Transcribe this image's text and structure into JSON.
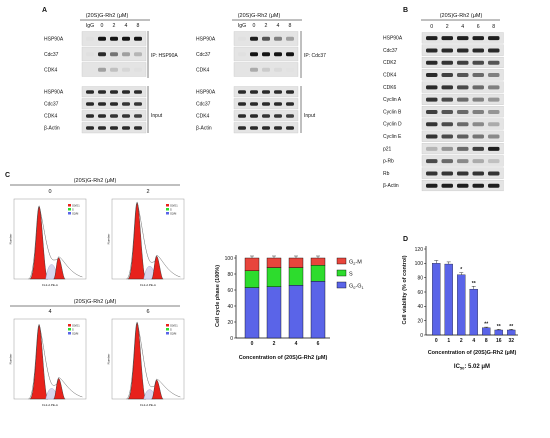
{
  "compound": "(20S)G-Rh2 (μM)",
  "panel_a": {
    "letter": "A",
    "lanes": [
      "IgG",
      "0",
      "2",
      "4",
      "8"
    ],
    "ip_hsp90a": {
      "ip_label": "IP: HSP90A",
      "input_label": "Input",
      "ip_rows": [
        "HSP90A",
        "Cdc37",
        "CDK4"
      ],
      "input_rows": [
        "HSP90A",
        "Cdc37",
        "CDK4",
        "β-Actin"
      ],
      "ip_intensity": [
        [
          0.05,
          1,
          1,
          1,
          1
        ],
        [
          0.05,
          0.9,
          0.55,
          0.35,
          0.25
        ],
        [
          0,
          0.35,
          0.2,
          0.1,
          0.05
        ]
      ],
      "input_intensity": [
        [
          0.9,
          0.9,
          0.9,
          0.9,
          0.9
        ],
        [
          0.9,
          0.9,
          0.9,
          0.85,
          0.85
        ],
        [
          0.9,
          0.9,
          0.85,
          0.85,
          0.8
        ],
        [
          0.9,
          0.9,
          0.9,
          0.9,
          0.9
        ]
      ]
    },
    "ip_cdc37": {
      "ip_label": "IP: Cdc37",
      "input_label": "Input",
      "ip_rows": [
        "HSP90A",
        "Cdc37",
        "CDK4"
      ],
      "input_rows": [
        "HSP90A",
        "Cdc37",
        "CDK4",
        "β-Actin"
      ],
      "ip_intensity": [
        [
          0.05,
          0.95,
          0.7,
          0.5,
          0.35
        ],
        [
          0.05,
          1,
          1,
          1,
          1
        ],
        [
          0,
          0.3,
          0.15,
          0.08,
          0.04
        ]
      ],
      "input_intensity": [
        [
          0.9,
          0.9,
          0.9,
          0.9,
          0.9
        ],
        [
          0.9,
          0.9,
          0.9,
          0.9,
          0.9
        ],
        [
          0.9,
          0.9,
          0.85,
          0.85,
          0.8
        ],
        [
          0.9,
          0.9,
          0.9,
          0.9,
          0.9
        ]
      ]
    }
  },
  "panel_b": {
    "letter": "B",
    "lanes": [
      "0",
      "2",
      "4",
      "6",
      "8"
    ],
    "rows": [
      "HSP90A",
      "Cdc37",
      "CDK2",
      "CDK4",
      "CDK6",
      "Cyclin A",
      "Cyclin B",
      "Cyclin D",
      "Cyclin E",
      "p21",
      "p-Rb",
      "Rb",
      "β-Actin"
    ],
    "intensity": [
      [
        0.95,
        0.95,
        0.95,
        0.95,
        0.95
      ],
      [
        0.9,
        0.9,
        0.9,
        0.9,
        0.9
      ],
      [
        0.9,
        0.85,
        0.8,
        0.75,
        0.7
      ],
      [
        0.9,
        0.8,
        0.7,
        0.6,
        0.5
      ],
      [
        0.9,
        0.85,
        0.75,
        0.6,
        0.5
      ],
      [
        0.85,
        0.75,
        0.6,
        0.5,
        0.4
      ],
      [
        0.8,
        0.7,
        0.6,
        0.5,
        0.4
      ],
      [
        0.85,
        0.75,
        0.6,
        0.45,
        0.3
      ],
      [
        0.85,
        0.75,
        0.65,
        0.55,
        0.45
      ],
      [
        0.25,
        0.4,
        0.6,
        0.8,
        0.95
      ],
      [
        0.75,
        0.6,
        0.45,
        0.3,
        0.2
      ],
      [
        0.85,
        0.85,
        0.85,
        0.85,
        0.85
      ],
      [
        0.95,
        0.95,
        0.95,
        0.95,
        0.95
      ]
    ]
  },
  "panel_c": {
    "letter": "C",
    "histograms": [
      {
        "dose": "0",
        "g1": 0.95,
        "s": 0.25,
        "g2": 0.28
      },
      {
        "dose": "2",
        "g1": 1.0,
        "s": 0.22,
        "g2": 0.3
      },
      {
        "dose": "4",
        "g1": 0.97,
        "s": 0.18,
        "g2": 0.27
      },
      {
        "dose": "6",
        "g1": 1.0,
        "s": 0.16,
        "g2": 0.25
      }
    ],
    "legend": [
      "G0/G1",
      "S",
      "G2/M"
    ],
    "y_axis": "Number",
    "x_axis": "FL2-A PE-A"
  },
  "panel_d": {
    "letter": "D",
    "ic50_label": "IC",
    "ic50_sub": "50",
    "ic50_value": ": 5.02 μM"
  },
  "chart_data": [
    {
      "type": "bar",
      "stacked": true,
      "categories": [
        "0",
        "2",
        "4",
        "6"
      ],
      "series": [
        {
          "name": "G0-G1",
          "name_main": "G",
          "name_sub": "0",
          "name_mid": "-G",
          "name_sub2": "1",
          "values": [
            63,
            64,
            66,
            71
          ],
          "color": "#5a64e8"
        },
        {
          "name": "S",
          "name_main": "S",
          "name_sub": "",
          "name_mid": "",
          "name_sub2": "",
          "values": [
            21,
            24,
            22,
            20
          ],
          "color": "#2ddc2d"
        },
        {
          "name": "G2-M",
          "name_main": "G",
          "name_sub": "2",
          "name_mid": "-M",
          "name_sub2": "",
          "values": [
            16,
            12,
            12,
            9
          ],
          "color": "#e8453c"
        }
      ],
      "xlabel": "Concentration of (20S)G-Rh2 (μM)",
      "ylabel": "Cell cycle phase (100%)",
      "yticks": [
        "0",
        "20",
        "40",
        "60",
        "80",
        "100"
      ],
      "ylim": [
        0,
        100
      ]
    },
    {
      "type": "bar",
      "categories": [
        "0",
        "1",
        "2",
        "4",
        "8",
        "16",
        "32"
      ],
      "values": [
        100,
        99,
        84,
        64,
        10,
        7,
        7
      ],
      "errors": [
        4,
        3,
        3,
        4,
        1,
        1,
        1
      ],
      "significance": [
        "",
        "",
        "*",
        "**",
        "**",
        "**",
        "**"
      ],
      "color": "#5a64e8",
      "xlabel": "Concentration of (20S)G-Rh2 (μM)",
      "ylabel": "Cell viability (% of control)",
      "yticks": [
        "0",
        "20",
        "40",
        "60",
        "80",
        "100",
        "120"
      ],
      "ylim": [
        0,
        120
      ]
    }
  ]
}
